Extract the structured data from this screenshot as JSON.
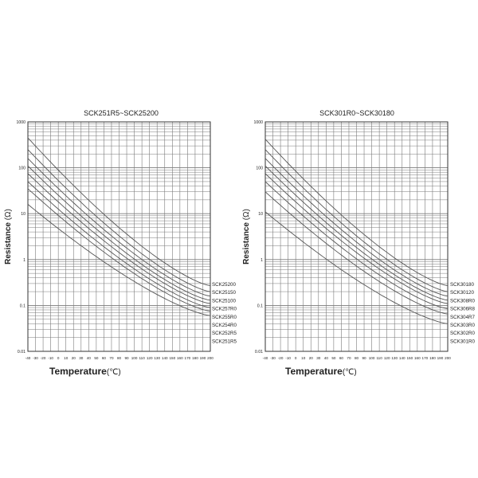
{
  "chart_data": [
    {
      "type": "line",
      "title": "SCK251R5~SCK25200",
      "xlabel": "Temperature",
      "xunit": "(℃)",
      "ylabel": "Resistance (Ω)",
      "ylabel_text": "Resistance",
      "yunit": "(Ω)",
      "yscale": "log",
      "xlim": [
        -40,
        200
      ],
      "ylim": [
        0.01,
        1000
      ],
      "x_ticks": [
        "-40",
        "-30",
        "-20",
        "-10",
        "0",
        "10",
        "20",
        "30",
        "40",
        "50",
        "60",
        "70",
        "80",
        "90",
        "100",
        "110",
        "120",
        "130",
        "140",
        "150",
        "160",
        "170",
        "180",
        "190",
        "200"
      ],
      "y_ticks": [
        "1000",
        "100",
        "10",
        "1",
        "0.1",
        "0.01"
      ],
      "x": [
        -40,
        200
      ],
      "series": [
        {
          "name": "SCK25200",
          "values": [
            450,
            0.27
          ]
        },
        {
          "name": "SCK25150",
          "values": [
            250,
            0.2
          ]
        },
        {
          "name": "SCK25100",
          "values": [
            160,
            0.16
          ]
        },
        {
          "name": "SCK257R0",
          "values": [
            110,
            0.13
          ]
        },
        {
          "name": "SCK255R0",
          "values": [
            75,
            0.11
          ]
        },
        {
          "name": "SCK254R0",
          "values": [
            50,
            0.09
          ]
        },
        {
          "name": "SCK252R5",
          "values": [
            35,
            0.075
          ]
        },
        {
          "name": "SCK251R5",
          "values": [
            16,
            0.06
          ]
        }
      ]
    },
    {
      "type": "line",
      "title": "SCK301R0~SCK30180",
      "xlabel": "Temperature",
      "xunit": "(℃)",
      "ylabel": "Resistance (Ω)",
      "ylabel_text": "Resistance",
      "yunit": "(Ω)",
      "yscale": "log",
      "xlim": [
        -40,
        200
      ],
      "ylim": [
        0.01,
        1000
      ],
      "x_ticks": [
        "-40",
        "-30",
        "-20",
        "-10",
        "0",
        "10",
        "20",
        "30",
        "40",
        "50",
        "60",
        "70",
        "80",
        "90",
        "100",
        "110",
        "120",
        "130",
        "140",
        "150",
        "160",
        "170",
        "180",
        "190",
        "200"
      ],
      "y_ticks": [
        "1000",
        "100",
        "10",
        "1",
        "0.1",
        "0.01"
      ],
      "x": [
        -40,
        200
      ],
      "series": [
        {
          "name": "SCK30180",
          "values": [
            420,
            0.27
          ]
        },
        {
          "name": "SCK30120",
          "values": [
            250,
            0.2
          ]
        },
        {
          "name": "SCK308R0",
          "values": [
            160,
            0.16
          ]
        },
        {
          "name": "SCK306R8",
          "values": [
            110,
            0.13
          ]
        },
        {
          "name": "SCK304R7",
          "values": [
            75,
            0.11
          ]
        },
        {
          "name": "SCK303R0",
          "values": [
            50,
            0.085
          ]
        },
        {
          "name": "SCK302R0",
          "values": [
            30,
            0.065
          ]
        },
        {
          "name": "SCK301R0",
          "values": [
            11,
            0.04
          ]
        }
      ]
    }
  ],
  "colors": {
    "curve": "#555555",
    "grid": "#7a7a7a",
    "frame": "#333333",
    "text": "#222222"
  }
}
